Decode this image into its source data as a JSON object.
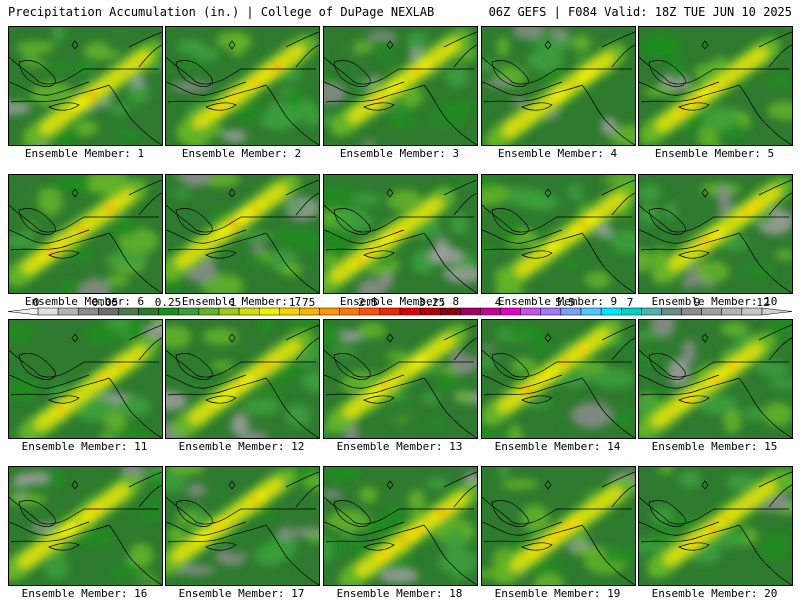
{
  "header": {
    "left": "Precipitation Accumulation (in.) | College of DuPage NEXLAB",
    "right": "06Z GEFS | F084 Valid: 18Z TUE JUN 10 2025"
  },
  "panels": [
    {
      "label": "Ensemble Member: 1"
    },
    {
      "label": "Ensemble Member: 2"
    },
    {
      "label": "Ensemble Member: 3"
    },
    {
      "label": "Ensemble Member: 4"
    },
    {
      "label": "Ensemble Member: 5"
    },
    {
      "label": "Ensemble Member: 6"
    },
    {
      "label": "Ensemble Member: 7"
    },
    {
      "label": "Ensemble Member: 8"
    },
    {
      "label": "Ensemble Member: 9"
    },
    {
      "label": "Ensemble Member: 10"
    },
    {
      "label": "Ensemble Member: 11"
    },
    {
      "label": "Ensemble Member: 12"
    },
    {
      "label": "Ensemble Member: 13"
    },
    {
      "label": "Ensemble Member: 14"
    },
    {
      "label": "Ensemble Member: 15"
    },
    {
      "label": "Ensemble Member: 16"
    },
    {
      "label": "Ensemble Member: 17"
    },
    {
      "label": "Ensemble Member: 18"
    },
    {
      "label": "Ensemble Member: 19"
    },
    {
      "label": "Ensemble Member: 20"
    }
  ],
  "colorbar": {
    "labels": [
      "0",
      "0.05",
      "0.25",
      "1",
      "1.75",
      "2.5",
      "3.25",
      "4",
      "5.5",
      "7",
      "9",
      "12"
    ],
    "colors": [
      "#e0e0e0",
      "#b4b4b4",
      "#8c8c8c",
      "#6e6e6e",
      "#507850",
      "#2e7a2e",
      "#1e8c1e",
      "#3ca03c",
      "#64b428",
      "#a0c814",
      "#d2dc0a",
      "#f0f000",
      "#ffd200",
      "#ffb400",
      "#ff9600",
      "#ff7800",
      "#ff5000",
      "#f02800",
      "#dc0000",
      "#b40000",
      "#8c0014",
      "#a00064",
      "#c80096",
      "#e600c8",
      "#c850f0",
      "#a078ff",
      "#78a0ff",
      "#50c8ff",
      "#00e6ff",
      "#00d2c8",
      "#50b4b4",
      "#6e8c8c",
      "#8c8c8c",
      "#a0a0a0",
      "#b4b4b4",
      "#c8c8c8"
    ]
  }
}
